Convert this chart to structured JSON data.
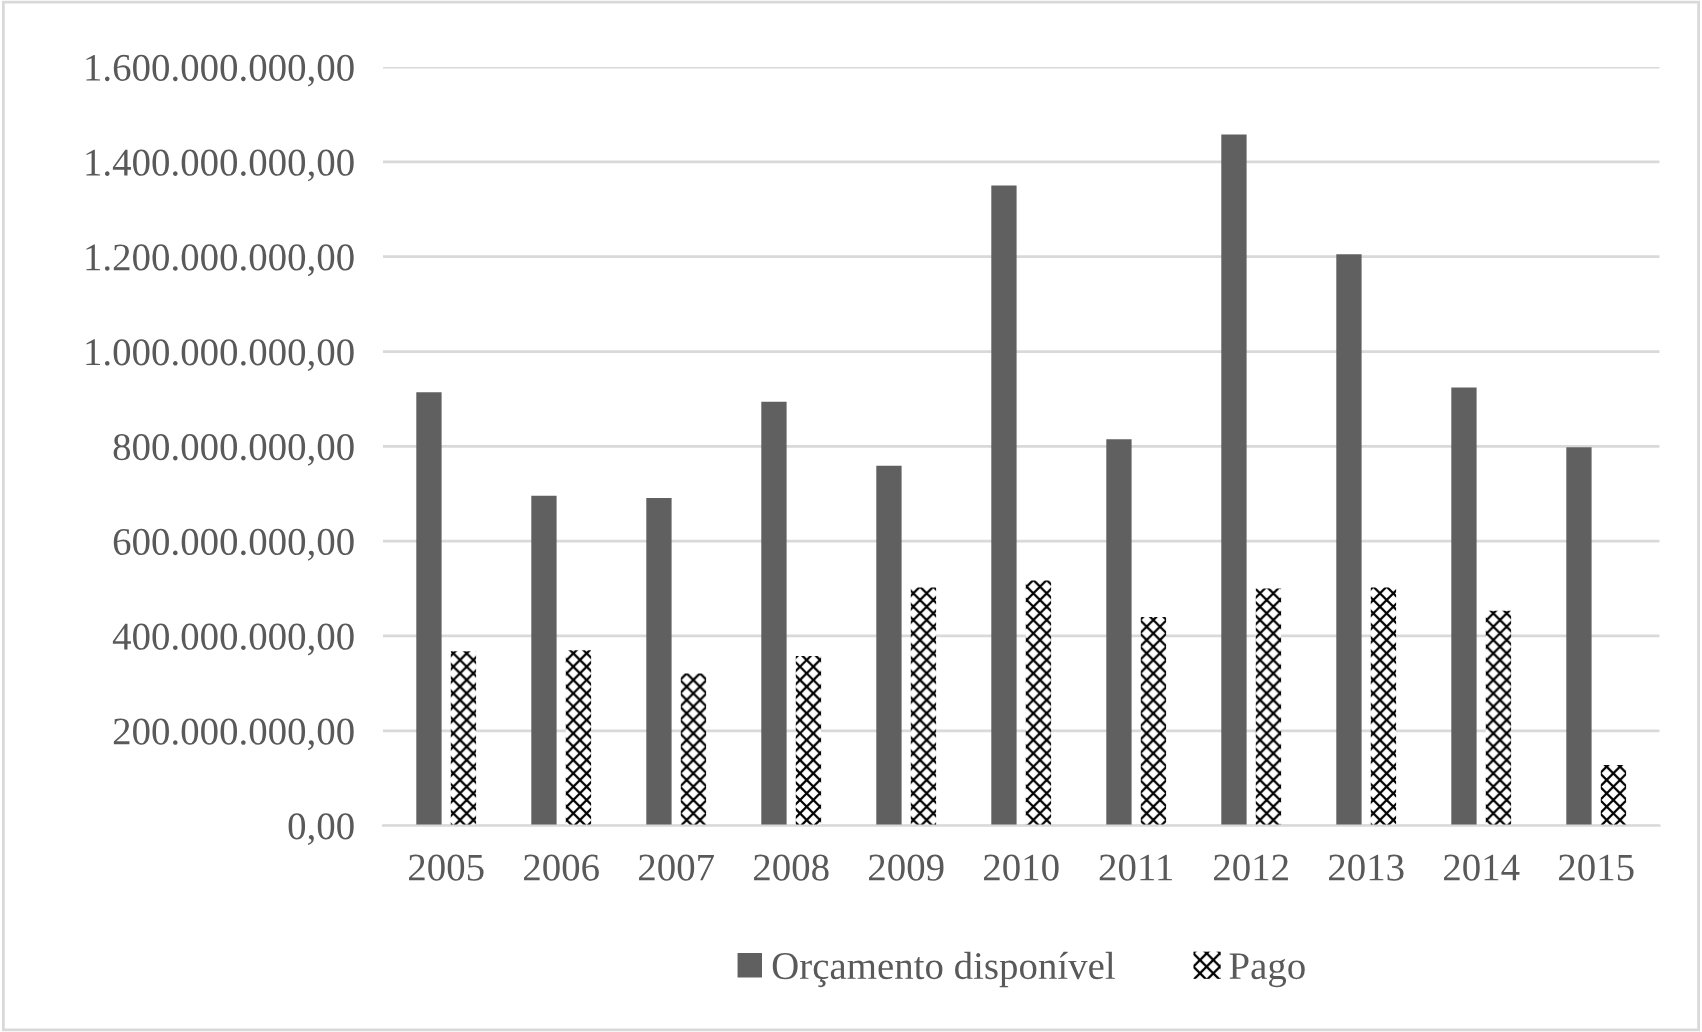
{
  "chart_data": {
    "type": "bar",
    "categories": [
      "2005",
      "2006",
      "2007",
      "2008",
      "2009",
      "2010",
      "2011",
      "2012",
      "2013",
      "2014",
      "2015"
    ],
    "series": [
      {
        "name": "Orçamento disponível",
        "color": "#606060",
        "values": [
          914000000,
          696000000,
          691000000,
          894000000,
          759000000,
          1350000000,
          815000000,
          1458000000,
          1205000000,
          924000000,
          798000000
        ]
      },
      {
        "name": "Pago",
        "color": "#000000",
        "values": [
          368000000,
          370000000,
          321000000,
          358000000,
          502000000,
          517000000,
          440000000,
          500000000,
          502000000,
          453000000,
          128000000
        ]
      }
    ],
    "ylim": [
      0,
      1600000000
    ],
    "yticks": [
      {
        "value": 0,
        "label": "0,00"
      },
      {
        "value": 200000000,
        "label": "200.000.000,00"
      },
      {
        "value": 400000000,
        "label": "400.000.000,00"
      },
      {
        "value": 600000000,
        "label": "600.000.000,00"
      },
      {
        "value": 800000000,
        "label": "800.000.000,00"
      },
      {
        "value": 1000000000,
        "label": "1.000.000.000,00"
      },
      {
        "value": 1200000000,
        "label": "1.200.000.000,00"
      },
      {
        "value": 1400000000,
        "label": "1.400.000.000,00"
      },
      {
        "value": 1600000000,
        "label": "1.600.000.000,00"
      }
    ],
    "grid": "y",
    "legend": "bottom"
  }
}
